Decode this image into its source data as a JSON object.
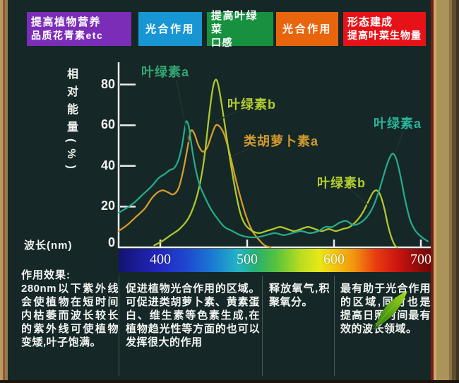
{
  "header": {
    "boxes": [
      {
        "line1": "提高植物营养",
        "line2": "品质花青素etc",
        "color": "#7b2db8"
      },
      {
        "line1": "光合作用",
        "line2": "",
        "color": "#1896d4"
      },
      {
        "line1": "提高叶绿菜",
        "line2": "口感",
        "color": "#17903f"
      },
      {
        "line1": "光合作用",
        "line2": "",
        "color": "#e8650d"
      },
      {
        "line1": "形态建成",
        "line2": "提高叶菜生物量",
        "color": "#e71218"
      }
    ]
  },
  "chart_data": {
    "type": "line",
    "title": "",
    "ylabel": "相对能量(%)",
    "xlabel": "波长(nm)",
    "origin_label": "0",
    "xlim": [
      352,
      713
    ],
    "ylim": [
      0,
      90
    ],
    "x_ticks": [
      400,
      500,
      600,
      700
    ],
    "y_ticks": [
      80,
      60,
      40,
      20
    ],
    "grid": false,
    "legend_position": "inline-annotations",
    "series": [
      {
        "name": "叶绿素a",
        "color": "#27a98c",
        "points": [
          [
            352,
            17
          ],
          [
            360,
            19
          ],
          [
            370,
            22
          ],
          [
            380,
            26
          ],
          [
            390,
            30
          ],
          [
            398,
            34
          ],
          [
            405,
            36
          ],
          [
            411,
            38
          ],
          [
            416,
            39
          ],
          [
            421,
            43
          ],
          [
            425,
            50
          ],
          [
            428,
            58
          ],
          [
            430,
            62
          ],
          [
            433,
            59
          ],
          [
            436,
            50
          ],
          [
            440,
            40
          ],
          [
            445,
            31
          ],
          [
            451,
            25
          ],
          [
            458,
            19
          ],
          [
            466,
            14
          ],
          [
            474,
            10
          ],
          [
            483,
            8
          ],
          [
            492,
            6
          ],
          [
            502,
            5
          ],
          [
            512,
            5
          ],
          [
            522,
            6
          ],
          [
            532,
            7
          ],
          [
            542,
            6
          ],
          [
            552,
            7
          ],
          [
            562,
            8
          ],
          [
            572,
            7
          ],
          [
            582,
            8
          ],
          [
            590,
            10
          ],
          [
            598,
            10
          ],
          [
            606,
            12
          ],
          [
            614,
            13
          ],
          [
            622,
            11
          ],
          [
            630,
            12
          ],
          [
            638,
            15
          ],
          [
            645,
            20
          ],
          [
            652,
            28
          ],
          [
            659,
            38
          ],
          [
            664,
            44
          ],
          [
            668,
            46
          ],
          [
            672,
            43
          ],
          [
            677,
            34
          ],
          [
            682,
            23
          ],
          [
            688,
            13
          ],
          [
            694,
            8
          ],
          [
            701,
            5
          ],
          [
            708,
            3
          ]
        ]
      },
      {
        "name": "叶绿素b",
        "color": "#aec72e",
        "points": [
          [
            393,
            1
          ],
          [
            402,
            3
          ],
          [
            412,
            6
          ],
          [
            422,
            9
          ],
          [
            432,
            14
          ],
          [
            440,
            22
          ],
          [
            446,
            32
          ],
          [
            451,
            45
          ],
          [
            456,
            64
          ],
          [
            460,
            77
          ],
          [
            463,
            82
          ],
          [
            466,
            81
          ],
          [
            470,
            72
          ],
          [
            475,
            58
          ],
          [
            480,
            44
          ],
          [
            486,
            29
          ],
          [
            492,
            17
          ],
          [
            498,
            11
          ],
          [
            506,
            8
          ],
          [
            514,
            7
          ],
          [
            522,
            8
          ],
          [
            530,
            9
          ],
          [
            538,
            10
          ],
          [
            546,
            9
          ],
          [
            554,
            8
          ],
          [
            562,
            9
          ],
          [
            570,
            10
          ],
          [
            578,
            9
          ],
          [
            586,
            8
          ],
          [
            594,
            9
          ],
          [
            602,
            8
          ],
          [
            610,
            9
          ],
          [
            618,
            10
          ],
          [
            626,
            13
          ],
          [
            633,
            17
          ],
          [
            640,
            23
          ],
          [
            645,
            27
          ],
          [
            649,
            28
          ],
          [
            653,
            26
          ],
          [
            658,
            19
          ],
          [
            662,
            11
          ],
          [
            666,
            5
          ],
          [
            670,
            1
          ],
          [
            673,
            0
          ]
        ]
      },
      {
        "name": "类胡萝卜素a",
        "color": "#d69b2b",
        "points": [
          [
            352,
            8
          ],
          [
            362,
            11
          ],
          [
            372,
            15
          ],
          [
            382,
            19
          ],
          [
            390,
            24
          ],
          [
            397,
            27
          ],
          [
            403,
            28
          ],
          [
            409,
            27
          ],
          [
            415,
            26
          ],
          [
            421,
            29
          ],
          [
            426,
            37
          ],
          [
            431,
            48
          ],
          [
            435,
            57
          ],
          [
            439,
            56
          ],
          [
            444,
            50
          ],
          [
            449,
            47
          ],
          [
            454,
            49
          ],
          [
            459,
            55
          ],
          [
            464,
            60
          ],
          [
            469,
            59
          ],
          [
            474,
            55
          ],
          [
            480,
            46
          ],
          [
            486,
            35
          ],
          [
            492,
            25
          ],
          [
            499,
            15
          ],
          [
            506,
            8
          ],
          [
            513,
            4
          ],
          [
            520,
            1
          ],
          [
            527,
            0
          ]
        ]
      }
    ],
    "annotations": [
      {
        "text": "叶绿素a",
        "color": "#33a673"
      },
      {
        "text": "叶绿素b",
        "color": "#b3cc31"
      },
      {
        "text": "类胡萝卜素a",
        "color": "#d29b2f"
      },
      {
        "text": "叶绿素a",
        "color": "#2bb29a"
      },
      {
        "text": "叶绿素b",
        "color": "#b3cc31"
      }
    ],
    "spectrum_stops": [
      {
        "pos": 0,
        "color": "#131370"
      },
      {
        "pos": 6,
        "color": "#1b1b96"
      },
      {
        "pos": 13,
        "color": "#2227c0"
      },
      {
        "pos": 22,
        "color": "#1e49d0"
      },
      {
        "pos": 30,
        "color": "#1a7ad2"
      },
      {
        "pos": 38,
        "color": "#22b4c6"
      },
      {
        "pos": 44,
        "color": "#2ab06e"
      },
      {
        "pos": 50,
        "color": "#55c23e"
      },
      {
        "pos": 58,
        "color": "#b8dc20"
      },
      {
        "pos": 64,
        "color": "#e8e816"
      },
      {
        "pos": 69,
        "color": "#f2c410"
      },
      {
        "pos": 75,
        "color": "#f29410"
      },
      {
        "pos": 82,
        "color": "#e83c10"
      },
      {
        "pos": 89,
        "color": "#cc1410"
      },
      {
        "pos": 96,
        "color": "#8c0a0a"
      },
      {
        "pos": 100,
        "color": "#6e0606"
      }
    ]
  },
  "footer": {
    "title": "作用效果:",
    "columns": [
      {
        "text": "280nm以下紫外线会使植物在短时间内枯萎而波长较长的紫外线可使植物变矮,叶子饱满。"
      },
      {
        "text": "促进植物光合作用的区域。可促进类胡萝卜素、黄素蛋白、维生素等色素生成,在植物趋光性等方面的也可以发挥很大的作用"
      },
      {
        "text": "释放氧气,积聚氧分。"
      },
      {
        "text": "最有助于光合作用的区域,同时也是提高日照时间最有效的波长领域。"
      }
    ]
  },
  "decor": {
    "leaf_icon": "leaf"
  }
}
